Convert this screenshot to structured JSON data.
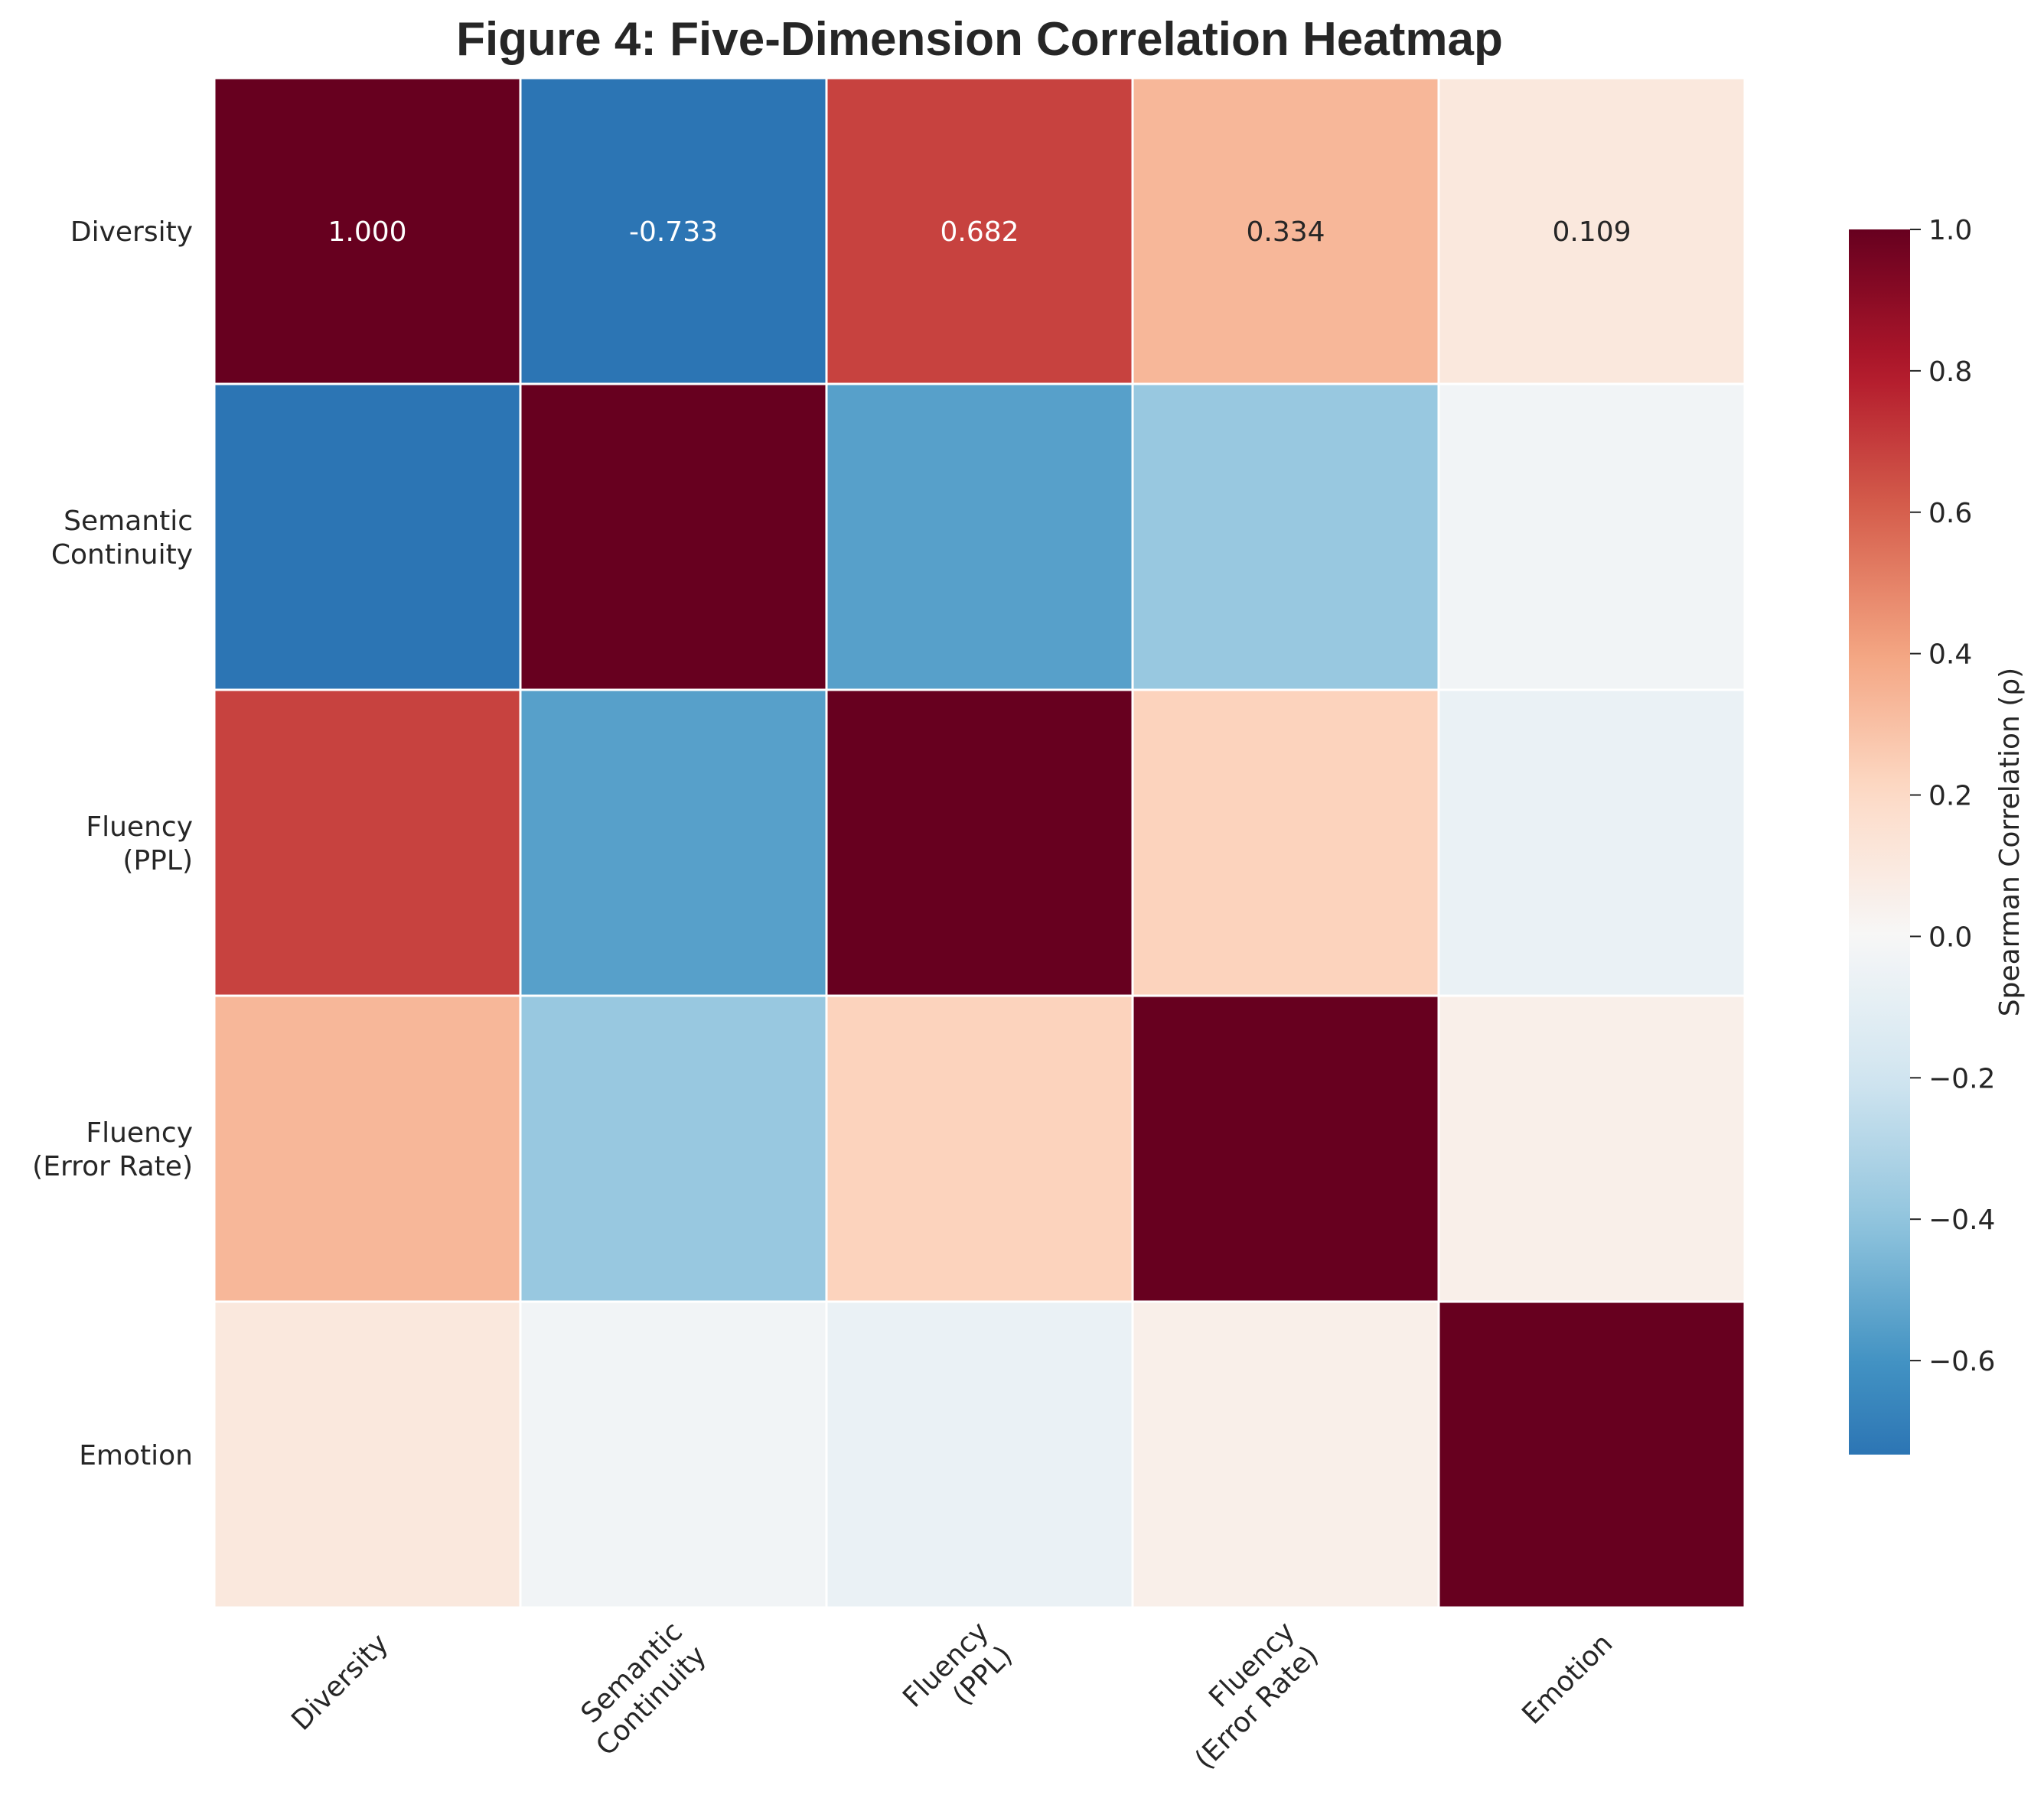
{
  "chart_data": {
    "type": "heatmap",
    "title": "Figure 4: Five-Dimension Correlation Heatmap",
    "row_labels": [
      [
        "Diversity"
      ],
      [
        "Semantic",
        "Continuity"
      ],
      [
        "Fluency",
        "(PPL)"
      ],
      [
        "Fluency",
        "(Error Rate)"
      ],
      [
        "Emotion"
      ]
    ],
    "col_labels": [
      [
        "Diversity"
      ],
      [
        "Semantic",
        "Continuity"
      ],
      [
        "Fluency",
        "(PPL)"
      ],
      [
        "Fluency",
        "(Error Rate)"
      ],
      [
        "Emotion"
      ]
    ],
    "matrix": [
      [
        1.0,
        -0.733,
        0.682,
        0.334,
        0.109
      ],
      [
        -0.733,
        1.0,
        -0.55,
        -0.38,
        -0.03
      ],
      [
        0.682,
        -0.55,
        1.0,
        0.23,
        -0.07
      ],
      [
        0.334,
        -0.38,
        0.23,
        1.0,
        0.06
      ],
      [
        0.109,
        -0.03,
        -0.07,
        0.06,
        1.0
      ]
    ],
    "annotations": [
      {
        "row": 0,
        "col": 0,
        "text": "1.000"
      },
      {
        "row": 0,
        "col": 1,
        "text": "-0.733"
      },
      {
        "row": 0,
        "col": 2,
        "text": "0.682"
      },
      {
        "row": 0,
        "col": 3,
        "text": "0.334"
      },
      {
        "row": 0,
        "col": 4,
        "text": "0.109"
      }
    ],
    "colormap": "RdBu_r",
    "vmin": -0.733,
    "vmax": 1.0,
    "colorbar": {
      "label": "Spearman Correlation (ρ)",
      "ticks": [
        1.0,
        0.8,
        0.6,
        0.4,
        0.2,
        0.0,
        -0.2,
        -0.4,
        -0.6
      ],
      "tick_labels": [
        "1.0",
        "0.8",
        "0.6",
        "0.4",
        "0.2",
        "0.0",
        "−0.2",
        "−0.4",
        "−0.6"
      ]
    },
    "grid": false,
    "legend": "colorbar-right"
  }
}
